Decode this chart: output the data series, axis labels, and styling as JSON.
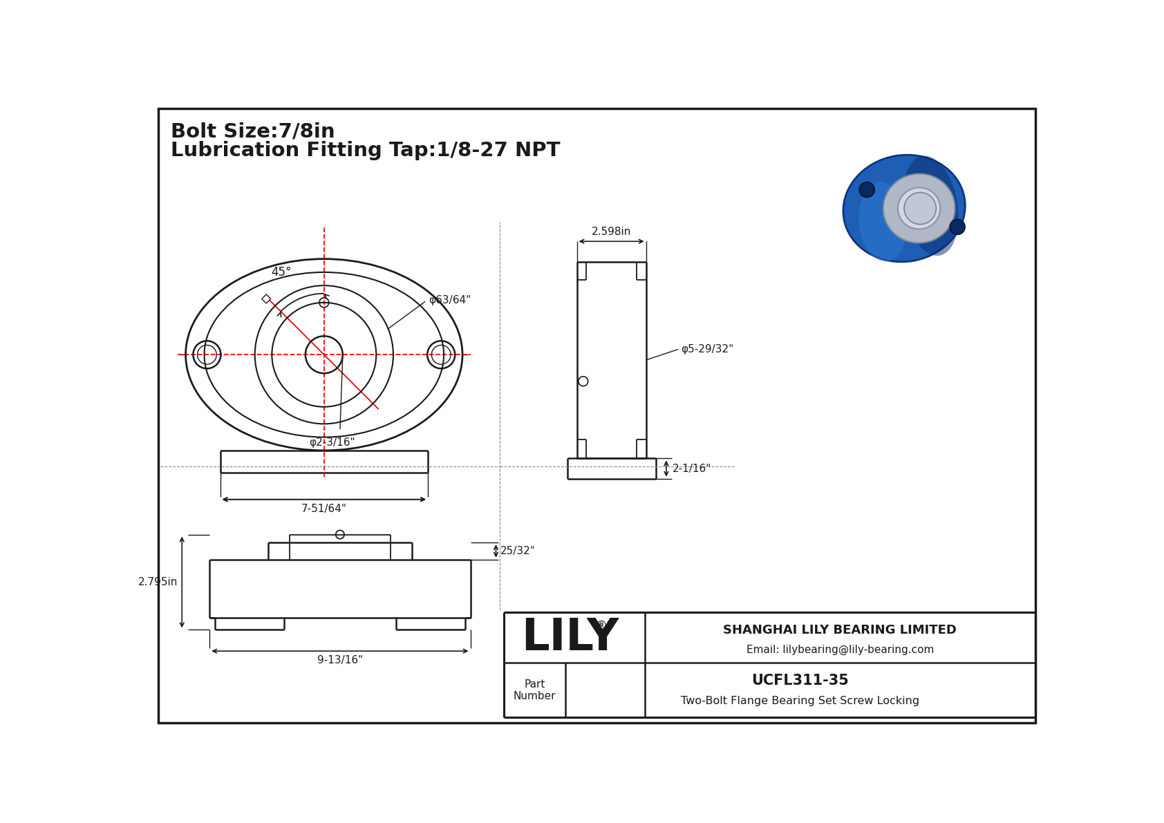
{
  "bg_color": "#ffffff",
  "line_color": "#1a1a1a",
  "red_color": "#ff0000",
  "gray_color": "#888888",
  "title_line1": "Bolt Size:7/8in",
  "title_line2": "Lubrication Fitting Tap:1/8-27 NPT",
  "company": "SHANGHAI LILY BEARING LIMITED",
  "email": "Email: lilybearing@lily-bearing.com",
  "part_label": "Part\nNumber",
  "part_number": "UCFL311-35",
  "part_desc": "Two-Bolt Flange Bearing Set Screw Locking",
  "lily_text": "LILY",
  "dim_bolt": "7-51/64\"",
  "dim_bore": "φ2-3/16\"",
  "dim_outer": "φ63/64\"",
  "dim_angle": "45°",
  "dim_side_width": "2.598in",
  "dim_side_od": "φ5-29/32\"",
  "dim_side_height": "2-1/16\"",
  "dim_front_height": "2.795in",
  "dim_front_width": "9-13/16\"",
  "dim_front_depth": "25/32\""
}
